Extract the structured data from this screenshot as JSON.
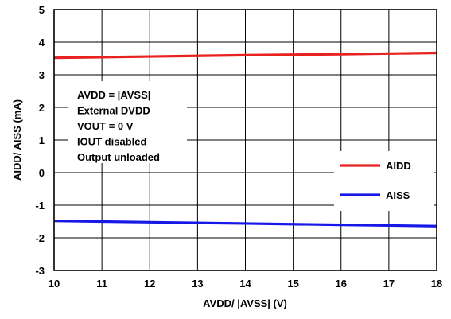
{
  "chart_data": {
    "type": "line",
    "xlabel": "AVDD/ |AVSS| (V)",
    "ylabel": "AIDD/ AISS (mA)",
    "xlim": [
      10,
      18
    ],
    "ylim": [
      -3,
      5
    ],
    "x_ticks": [
      "10",
      "11",
      "12",
      "13",
      "14",
      "15",
      "16",
      "17",
      "18"
    ],
    "y_ticks": [
      "5",
      "4",
      "3",
      "2",
      "1",
      "0",
      "-1",
      "-2",
      "-3"
    ],
    "x_tick_values": [
      10,
      11,
      12,
      13,
      14,
      15,
      16,
      17,
      18
    ],
    "y_tick_values": [
      5,
      4,
      3,
      2,
      1,
      0,
      -1,
      -2,
      -3
    ],
    "grid": true,
    "legend_position": "lower-right",
    "series": [
      {
        "name": "AIDD",
        "color": "#e8221f",
        "x": [
          10,
          12,
          14,
          16,
          18
        ],
        "y": [
          3.52,
          3.56,
          3.6,
          3.63,
          3.67
        ]
      },
      {
        "name": "AISS",
        "color": "#1717e6",
        "x": [
          10,
          12,
          14,
          16,
          18
        ],
        "y": [
          -1.48,
          -1.52,
          -1.56,
          -1.6,
          -1.64
        ]
      }
    ],
    "annotation": [
      "AVDD = |AVSS|",
      "External DVDD",
      "VOUT = 0 V",
      "IOUT disabled",
      "Output unloaded"
    ]
  }
}
